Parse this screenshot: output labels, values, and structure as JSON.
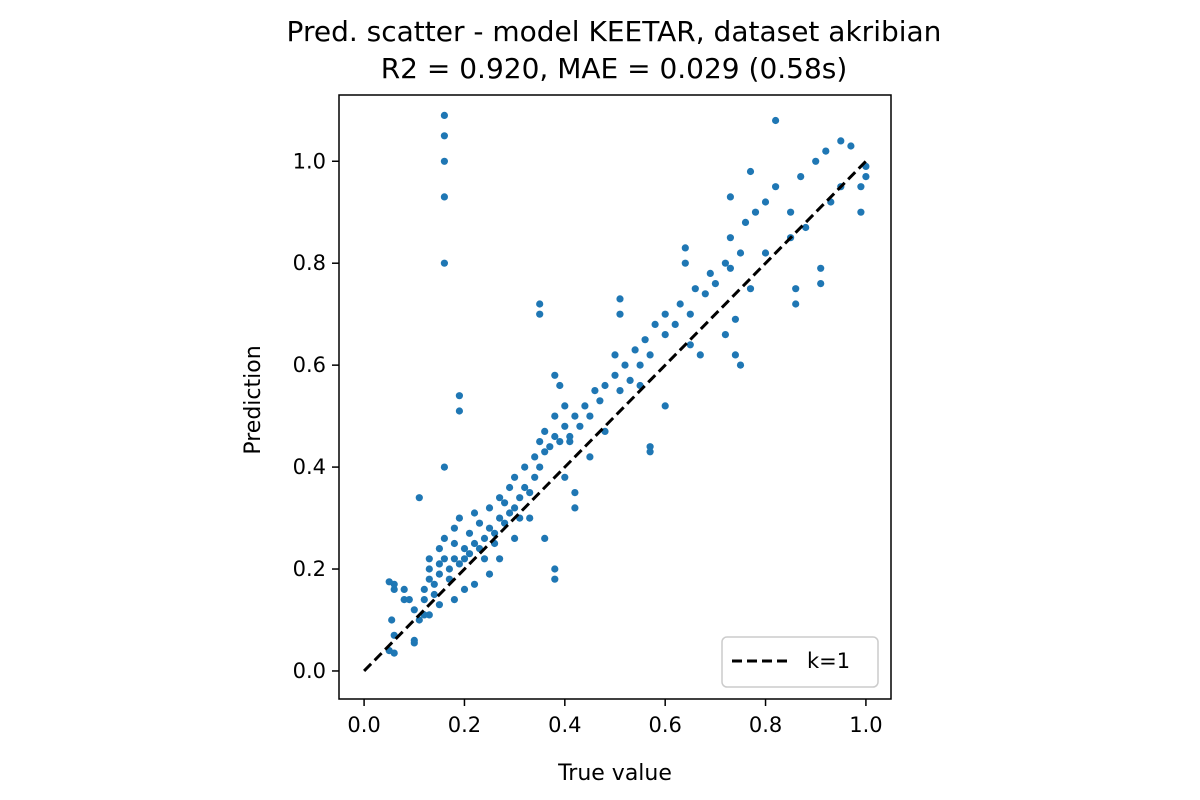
{
  "chart_data": {
    "type": "scatter",
    "title": "Pred. scatter - model KEETAR, dataset akribian",
    "subtitle": "R2 = 0.920, MAE = 0.029 (0.58s)",
    "xlabel": "True value",
    "ylabel": "Prediction",
    "xlim": [
      -0.05,
      1.05
    ],
    "ylim": [
      -0.055,
      1.13
    ],
    "xticks": [
      "0.0",
      "0.2",
      "0.4",
      "0.6",
      "0.8",
      "1.0"
    ],
    "yticks": [
      "0.0",
      "0.2",
      "0.4",
      "0.6",
      "0.8",
      "1.0"
    ],
    "grid": false,
    "legend": {
      "position": "lower-right",
      "entries": [
        "k=1"
      ]
    },
    "reference_line": {
      "label": "k=1",
      "style": "dashed",
      "color": "#000000",
      "x": [
        0,
        1
      ],
      "y": [
        0,
        1
      ]
    },
    "point_color": "#1f77b4",
    "series": [
      {
        "points": [
          [
            0.05,
            0.04
          ],
          [
            0.06,
            0.035
          ],
          [
            0.06,
            0.07
          ],
          [
            0.055,
            0.1
          ],
          [
            0.06,
            0.16
          ],
          [
            0.06,
            0.17
          ],
          [
            0.05,
            0.175
          ],
          [
            0.08,
            0.16
          ],
          [
            0.08,
            0.14
          ],
          [
            0.09,
            0.14
          ],
          [
            0.1,
            0.12
          ],
          [
            0.1,
            0.055
          ],
          [
            0.1,
            0.06
          ],
          [
            0.12,
            0.11
          ],
          [
            0.12,
            0.14
          ],
          [
            0.12,
            0.16
          ],
          [
            0.13,
            0.18
          ],
          [
            0.13,
            0.2
          ],
          [
            0.13,
            0.22
          ],
          [
            0.14,
            0.15
          ],
          [
            0.14,
            0.17
          ],
          [
            0.15,
            0.19
          ],
          [
            0.15,
            0.21
          ],
          [
            0.15,
            0.24
          ],
          [
            0.16,
            0.22
          ],
          [
            0.16,
            0.26
          ],
          [
            0.17,
            0.2
          ],
          [
            0.17,
            0.18
          ],
          [
            0.18,
            0.22
          ],
          [
            0.18,
            0.25
          ],
          [
            0.18,
            0.28
          ],
          [
            0.19,
            0.21
          ],
          [
            0.19,
            0.3
          ],
          [
            0.2,
            0.22
          ],
          [
            0.2,
            0.24
          ],
          [
            0.21,
            0.23
          ],
          [
            0.21,
            0.27
          ],
          [
            0.22,
            0.25
          ],
          [
            0.22,
            0.31
          ],
          [
            0.23,
            0.24
          ],
          [
            0.23,
            0.29
          ],
          [
            0.24,
            0.26
          ],
          [
            0.24,
            0.22
          ],
          [
            0.25,
            0.28
          ],
          [
            0.25,
            0.32
          ],
          [
            0.26,
            0.27
          ],
          [
            0.26,
            0.25
          ],
          [
            0.27,
            0.3
          ],
          [
            0.27,
            0.34
          ],
          [
            0.28,
            0.29
          ],
          [
            0.28,
            0.33
          ],
          [
            0.29,
            0.31
          ],
          [
            0.29,
            0.36
          ],
          [
            0.3,
            0.32
          ],
          [
            0.3,
            0.38
          ],
          [
            0.31,
            0.34
          ],
          [
            0.31,
            0.3
          ],
          [
            0.32,
            0.36
          ],
          [
            0.32,
            0.4
          ],
          [
            0.33,
            0.35
          ],
          [
            0.34,
            0.42
          ],
          [
            0.34,
            0.38
          ],
          [
            0.35,
            0.45
          ],
          [
            0.35,
            0.4
          ],
          [
            0.36,
            0.43
          ],
          [
            0.36,
            0.47
          ],
          [
            0.37,
            0.44
          ],
          [
            0.38,
            0.46
          ],
          [
            0.38,
            0.5
          ],
          [
            0.39,
            0.45
          ],
          [
            0.4,
            0.48
          ],
          [
            0.4,
            0.52
          ],
          [
            0.41,
            0.46
          ],
          [
            0.42,
            0.5
          ],
          [
            0.43,
            0.48
          ],
          [
            0.44,
            0.52
          ],
          [
            0.45,
            0.5
          ],
          [
            0.46,
            0.55
          ],
          [
            0.47,
            0.53
          ],
          [
            0.48,
            0.56
          ],
          [
            0.5,
            0.58
          ],
          [
            0.5,
            0.62
          ],
          [
            0.51,
            0.55
          ],
          [
            0.52,
            0.6
          ],
          [
            0.53,
            0.57
          ],
          [
            0.54,
            0.63
          ],
          [
            0.55,
            0.6
          ],
          [
            0.56,
            0.65
          ],
          [
            0.57,
            0.62
          ],
          [
            0.58,
            0.68
          ],
          [
            0.6,
            0.66
          ],
          [
            0.6,
            0.7
          ],
          [
            0.62,
            0.68
          ],
          [
            0.63,
            0.72
          ],
          [
            0.65,
            0.7
          ],
          [
            0.66,
            0.75
          ],
          [
            0.68,
            0.74
          ],
          [
            0.69,
            0.78
          ],
          [
            0.7,
            0.76
          ],
          [
            0.72,
            0.8
          ],
          [
            0.73,
            0.85
          ],
          [
            0.75,
            0.82
          ],
          [
            0.76,
            0.88
          ],
          [
            0.78,
            0.9
          ],
          [
            0.8,
            0.92
          ],
          [
            0.82,
            0.95
          ],
          [
            0.85,
            0.9
          ],
          [
            0.87,
            0.97
          ],
          [
            0.9,
            1.0
          ],
          [
            0.92,
            1.02
          ],
          [
            0.95,
            1.04
          ],
          [
            0.97,
            1.03
          ],
          [
            0.16,
            0.8
          ],
          [
            0.16,
            0.93
          ],
          [
            0.16,
            1.0
          ],
          [
            0.16,
            1.05
          ],
          [
            0.16,
            1.09
          ],
          [
            0.16,
            0.4
          ],
          [
            0.19,
            0.51
          ],
          [
            0.19,
            0.54
          ],
          [
            0.11,
            0.34
          ],
          [
            0.35,
            0.7
          ],
          [
            0.35,
            0.72
          ],
          [
            0.38,
            0.58
          ],
          [
            0.39,
            0.56
          ],
          [
            0.38,
            0.2
          ],
          [
            0.38,
            0.18
          ],
          [
            0.36,
            0.26
          ],
          [
            0.41,
            0.45
          ],
          [
            0.42,
            0.35
          ],
          [
            0.42,
            0.32
          ],
          [
            0.51,
            0.7
          ],
          [
            0.51,
            0.73
          ],
          [
            0.57,
            0.43
          ],
          [
            0.57,
            0.44
          ],
          [
            0.6,
            0.52
          ],
          [
            0.64,
            0.8
          ],
          [
            0.64,
            0.83
          ],
          [
            0.72,
            0.66
          ],
          [
            0.74,
            0.62
          ],
          [
            0.75,
            0.6
          ],
          [
            0.74,
            0.69
          ],
          [
            0.73,
            0.79
          ],
          [
            0.73,
            0.93
          ],
          [
            0.77,
            0.98
          ],
          [
            0.82,
            1.08
          ],
          [
            0.86,
            0.72
          ],
          [
            0.86,
            0.75
          ],
          [
            0.91,
            0.76
          ],
          [
            0.91,
            0.79
          ],
          [
            0.99,
            0.9
          ],
          [
            0.99,
            0.95
          ],
          [
            1.0,
            0.97
          ],
          [
            1.0,
            0.99
          ],
          [
            0.93,
            0.92
          ],
          [
            0.95,
            0.95
          ],
          [
            0.88,
            0.87
          ],
          [
            0.85,
            0.85
          ],
          [
            0.8,
            0.82
          ],
          [
            0.77,
            0.75
          ],
          [
            0.67,
            0.62
          ],
          [
            0.65,
            0.64
          ],
          [
            0.55,
            0.56
          ],
          [
            0.48,
            0.47
          ],
          [
            0.45,
            0.42
          ],
          [
            0.4,
            0.38
          ],
          [
            0.33,
            0.3
          ],
          [
            0.3,
            0.26
          ],
          [
            0.27,
            0.22
          ],
          [
            0.25,
            0.19
          ],
          [
            0.22,
            0.17
          ],
          [
            0.2,
            0.16
          ],
          [
            0.18,
            0.14
          ],
          [
            0.15,
            0.13
          ],
          [
            0.13,
            0.11
          ],
          [
            0.11,
            0.1
          ]
        ]
      }
    ]
  }
}
